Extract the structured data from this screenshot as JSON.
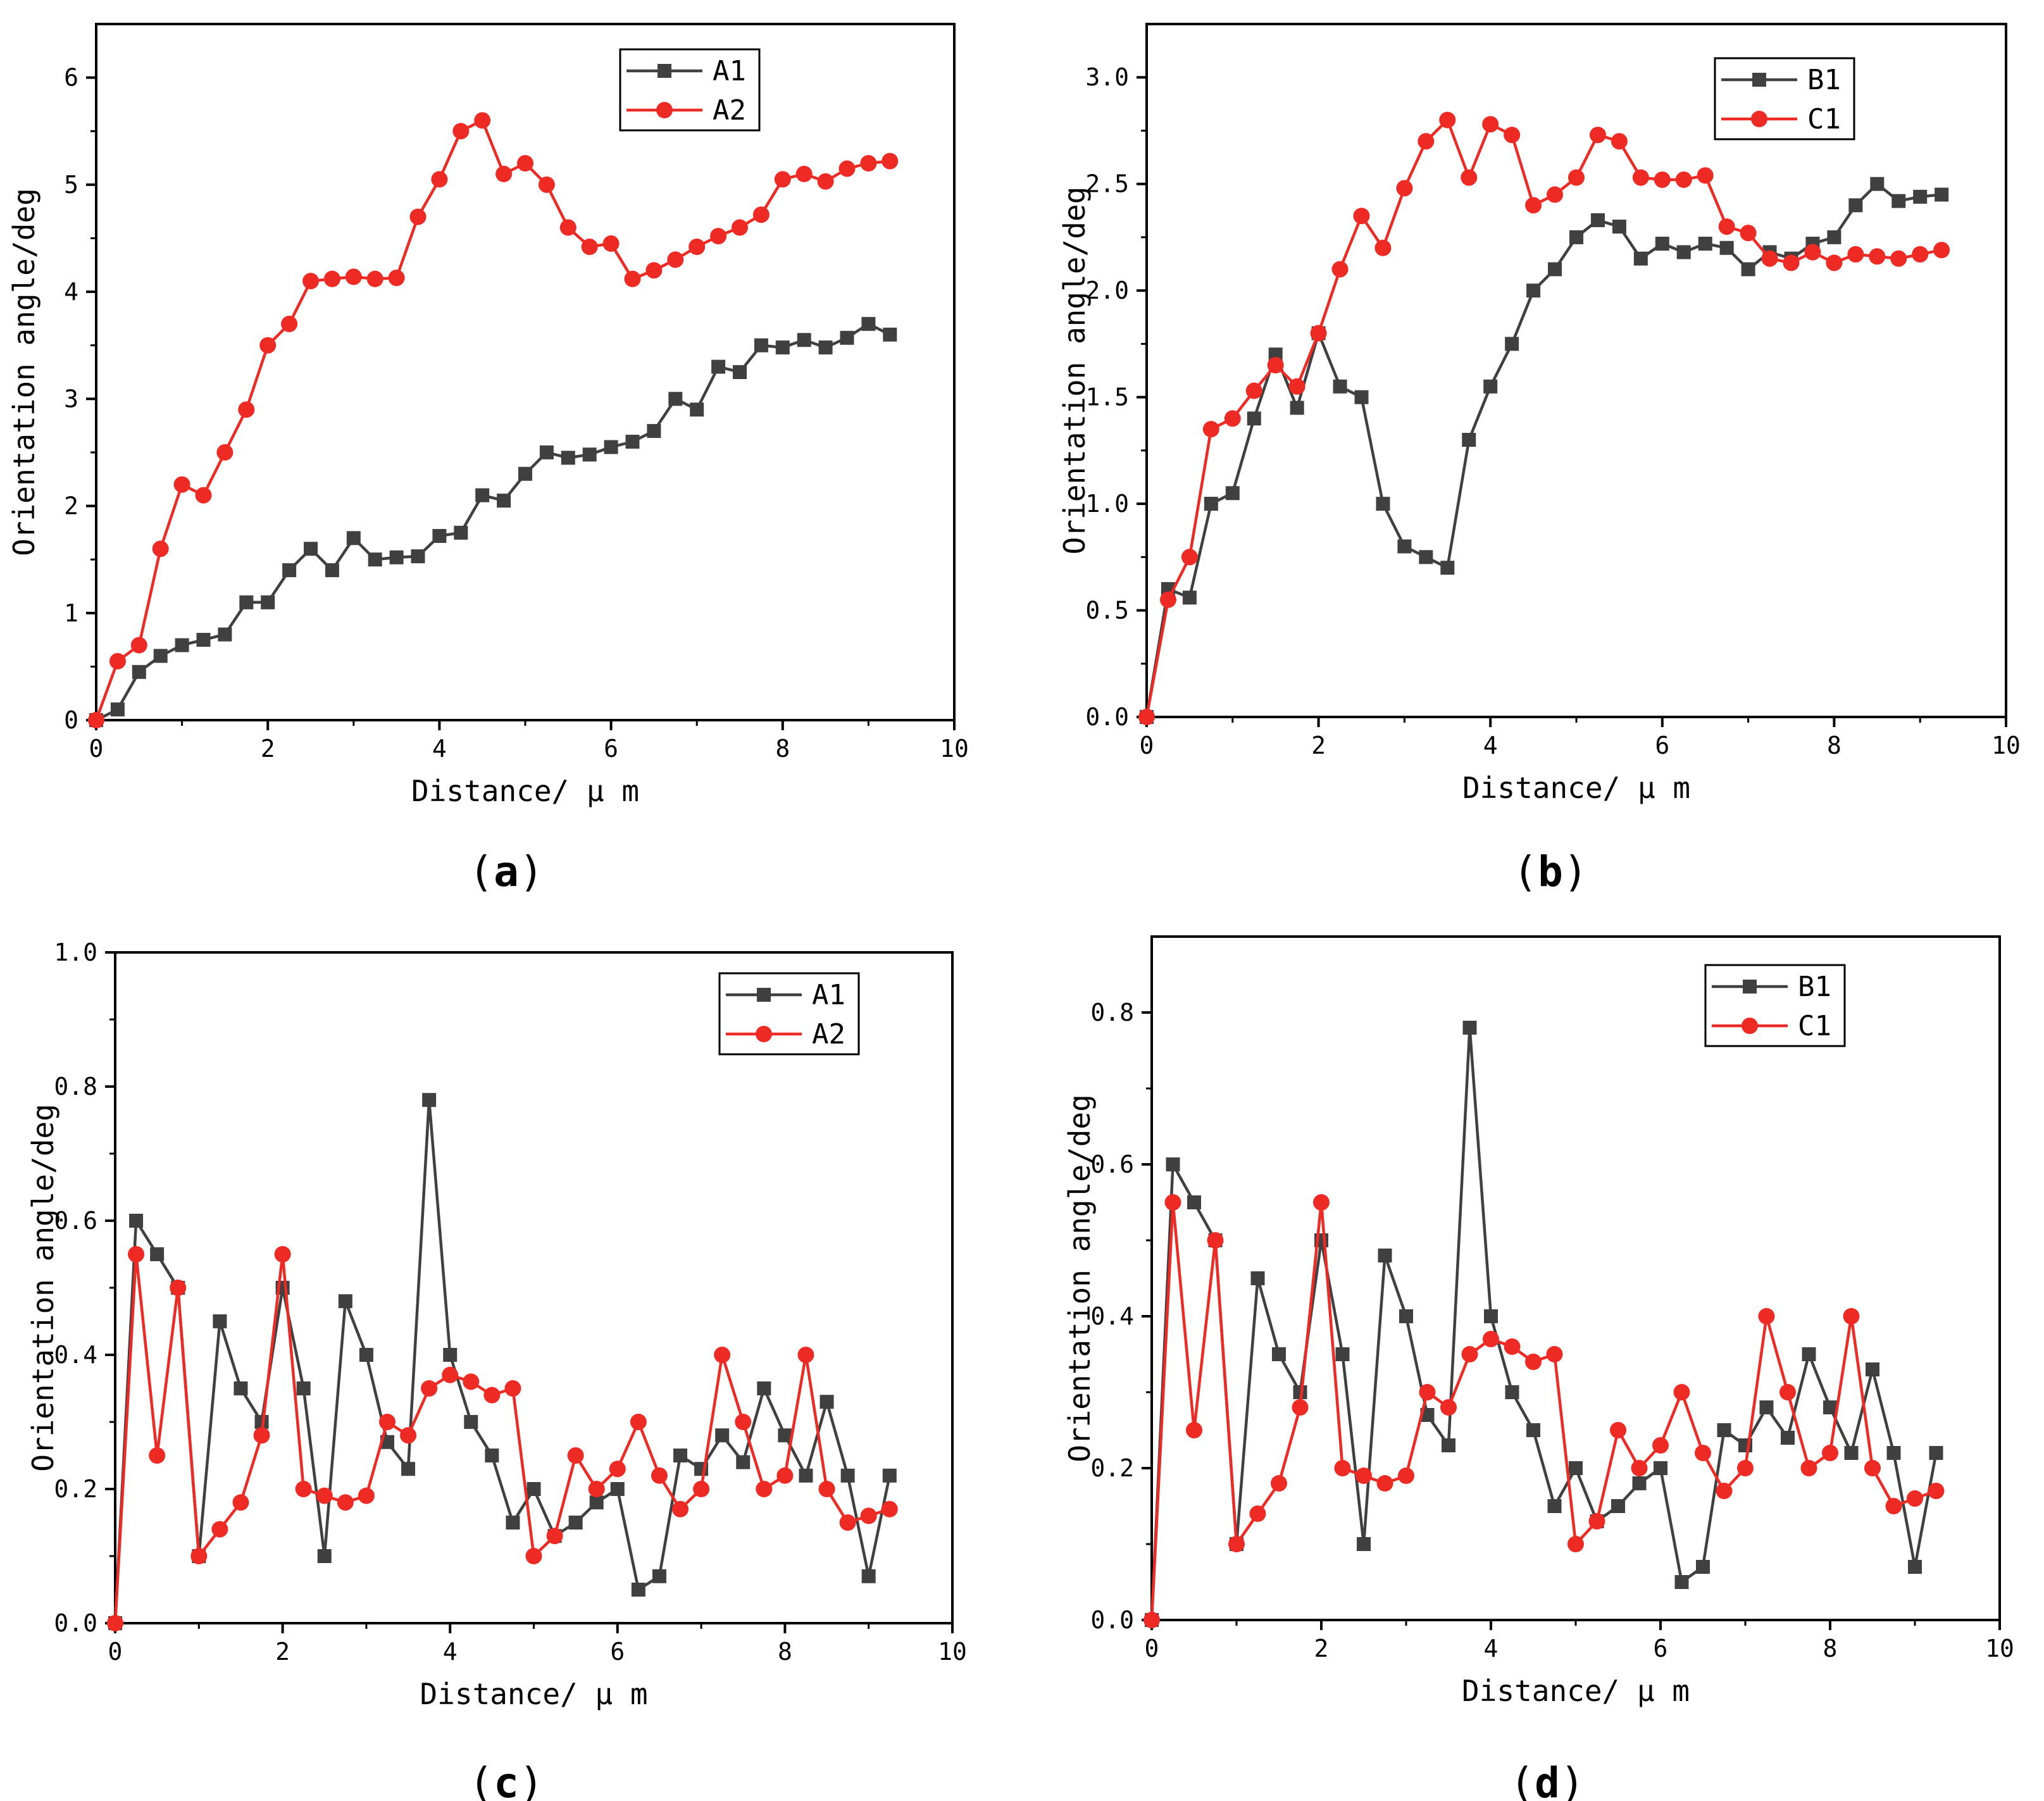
{
  "figure": {
    "colors": {
      "series1": "#404040",
      "series2": "#ee2a24",
      "axis": "#000000"
    }
  },
  "chart_data": [
    {
      "type": "line",
      "caption_letter": "a",
      "title": "",
      "xlabel": "Distance/ μ m",
      "ylabel": "Orientation angle/deg",
      "xlim": [
        0,
        10
      ],
      "ylim": [
        0,
        6.5
      ],
      "xticks": [
        0,
        2,
        4,
        6,
        8,
        10
      ],
      "xtick_labels": [
        "0",
        "2",
        "4",
        "6",
        "8",
        "10"
      ],
      "yticks": [
        0,
        1,
        2,
        3,
        4,
        5,
        6
      ],
      "ytick_labels": [
        "0",
        "1",
        "2",
        "3",
        "4",
        "5",
        "6"
      ],
      "legend_position": "top-center",
      "series": [
        {
          "name": "A1",
          "marker": "square",
          "color": "#404040",
          "x": [
            0,
            0.25,
            0.5,
            0.75,
            1.0,
            1.25,
            1.5,
            1.75,
            2.0,
            2.25,
            2.5,
            2.75,
            3.0,
            3.25,
            3.5,
            3.75,
            4.0,
            4.25,
            4.5,
            4.75,
            5.0,
            5.25,
            5.5,
            5.75,
            6.0,
            6.25,
            6.5,
            6.75,
            7.0,
            7.25,
            7.5,
            7.75,
            8.0,
            8.25,
            8.5,
            8.75,
            9.0,
            9.25
          ],
          "y": [
            0,
            0.1,
            0.45,
            0.6,
            0.7,
            0.75,
            0.8,
            1.1,
            1.1,
            1.4,
            1.6,
            1.4,
            1.7,
            1.5,
            1.52,
            1.53,
            1.72,
            1.75,
            2.1,
            2.05,
            2.3,
            2.5,
            2.45,
            2.48,
            2.55,
            2.6,
            2.7,
            3.0,
            2.9,
            3.3,
            3.25,
            3.5,
            3.48,
            3.55,
            3.48,
            3.57,
            3.7,
            3.6
          ]
        },
        {
          "name": "A2",
          "marker": "circle",
          "color": "#ee2a24",
          "x": [
            0,
            0.25,
            0.5,
            0.75,
            1.0,
            1.25,
            1.5,
            1.75,
            2.0,
            2.25,
            2.5,
            2.75,
            3.0,
            3.25,
            3.5,
            3.75,
            4.0,
            4.25,
            4.5,
            4.75,
            5.0,
            5.25,
            5.5,
            5.75,
            6.0,
            6.25,
            6.5,
            6.75,
            7.0,
            7.25,
            7.5,
            7.75,
            8.0,
            8.25,
            8.5,
            8.75,
            9.0,
            9.25
          ],
          "y": [
            0,
            0.55,
            0.7,
            1.6,
            2.2,
            2.1,
            2.5,
            2.9,
            3.5,
            3.7,
            4.1,
            4.12,
            4.14,
            4.12,
            4.13,
            4.7,
            5.05,
            5.5,
            5.6,
            5.1,
            5.2,
            5.0,
            4.6,
            4.42,
            4.45,
            4.12,
            4.2,
            4.3,
            4.42,
            4.52,
            4.6,
            4.72,
            5.05,
            5.1,
            5.03,
            5.15,
            5.2,
            5.22
          ]
        }
      ]
    },
    {
      "type": "line",
      "caption_letter": "b",
      "title": "",
      "xlabel": "Distance/ μ m",
      "ylabel": "Orientation angle/deg",
      "xlim": [
        0,
        10
      ],
      "ylim": [
        0,
        3.25
      ],
      "xticks": [
        0,
        2,
        4,
        6,
        8,
        10
      ],
      "xtick_labels": [
        "0",
        "2",
        "4",
        "6",
        "8",
        "10"
      ],
      "yticks": [
        0,
        0.5,
        1.0,
        1.5,
        2.0,
        2.5,
        3.0
      ],
      "ytick_labels": [
        "0.0",
        "0.5",
        "1.0",
        "1.5",
        "2.0",
        "2.5",
        "3.0"
      ],
      "legend_position": "top-right",
      "series": [
        {
          "name": "B1",
          "marker": "square",
          "color": "#404040",
          "x": [
            0,
            0.25,
            0.5,
            0.75,
            1.0,
            1.25,
            1.5,
            1.75,
            2.0,
            2.25,
            2.5,
            2.75,
            3.0,
            3.25,
            3.5,
            3.75,
            4.0,
            4.25,
            4.5,
            4.75,
            5.0,
            5.25,
            5.5,
            5.75,
            6.0,
            6.25,
            6.5,
            6.75,
            7.0,
            7.25,
            7.5,
            7.75,
            8.0,
            8.25,
            8.5,
            8.75,
            9.0,
            9.25
          ],
          "y": [
            0,
            0.6,
            0.56,
            1.0,
            1.05,
            1.4,
            1.7,
            1.45,
            1.8,
            1.55,
            1.5,
            1.0,
            0.8,
            0.75,
            0.7,
            1.3,
            1.55,
            1.75,
            2.0,
            2.1,
            2.25,
            2.33,
            2.3,
            2.15,
            2.22,
            2.18,
            2.22,
            2.2,
            2.1,
            2.18,
            2.15,
            2.22,
            2.25,
            2.4,
            2.5,
            2.42,
            2.44,
            2.45
          ]
        },
        {
          "name": "C1",
          "marker": "circle",
          "color": "#ee2a24",
          "x": [
            0,
            0.25,
            0.5,
            0.75,
            1.0,
            1.25,
            1.5,
            1.75,
            2.0,
            2.25,
            2.5,
            2.75,
            3.0,
            3.25,
            3.5,
            3.75,
            4.0,
            4.25,
            4.5,
            4.75,
            5.0,
            5.25,
            5.5,
            5.75,
            6.0,
            6.25,
            6.5,
            6.75,
            7.0,
            7.25,
            7.5,
            7.75,
            8.0,
            8.25,
            8.5,
            8.75,
            9.0,
            9.25
          ],
          "y": [
            0,
            0.55,
            0.75,
            1.35,
            1.4,
            1.53,
            1.65,
            1.55,
            1.8,
            2.1,
            2.35,
            2.2,
            2.48,
            2.7,
            2.8,
            2.53,
            2.78,
            2.73,
            2.4,
            2.45,
            2.53,
            2.73,
            2.7,
            2.53,
            2.52,
            2.52,
            2.54,
            2.3,
            2.27,
            2.15,
            2.13,
            2.18,
            2.13,
            2.17,
            2.16,
            2.15,
            2.17,
            2.19
          ]
        }
      ]
    },
    {
      "type": "line",
      "caption_letter": "c",
      "title": "",
      "xlabel": "Distance/ μ m",
      "ylabel": "Orientation angle/deg",
      "xlim": [
        0,
        10
      ],
      "ylim": [
        0,
        1.0
      ],
      "xticks": [
        0,
        2,
        4,
        6,
        8,
        10
      ],
      "xtick_labels": [
        "0",
        "2",
        "4",
        "6",
        "8",
        "10"
      ],
      "yticks": [
        0,
        0.2,
        0.4,
        0.6,
        0.8,
        1.0
      ],
      "ytick_labels": [
        "0.0",
        "0.2",
        "0.4",
        "0.6",
        "0.8",
        "1.0"
      ],
      "legend_position": "top-right",
      "series": [
        {
          "name": "A1",
          "marker": "square",
          "color": "#404040",
          "x": [
            0,
            0.25,
            0.5,
            0.75,
            1.0,
            1.25,
            1.5,
            1.75,
            2.0,
            2.25,
            2.5,
            2.75,
            3.0,
            3.25,
            3.5,
            3.75,
            4.0,
            4.25,
            4.5,
            4.75,
            5.0,
            5.25,
            5.5,
            5.75,
            6.0,
            6.25,
            6.5,
            6.75,
            7.0,
            7.25,
            7.5,
            7.75,
            8.0,
            8.25,
            8.5,
            8.75,
            9.0,
            9.25
          ],
          "y": [
            0,
            0.6,
            0.55,
            0.5,
            0.1,
            0.45,
            0.35,
            0.3,
            0.5,
            0.35,
            0.1,
            0.48,
            0.4,
            0.27,
            0.23,
            0.78,
            0.4,
            0.3,
            0.25,
            0.15,
            0.2,
            0.13,
            0.15,
            0.18,
            0.2,
            0.05,
            0.07,
            0.25,
            0.23,
            0.28,
            0.24,
            0.35,
            0.28,
            0.22,
            0.33,
            0.22,
            0.07,
            0.22
          ]
        },
        {
          "name": "A2",
          "marker": "circle",
          "color": "#ee2a24",
          "x": [
            0,
            0.25,
            0.5,
            0.75,
            1.0,
            1.25,
            1.5,
            1.75,
            2.0,
            2.25,
            2.5,
            2.75,
            3.0,
            3.25,
            3.5,
            3.75,
            4.0,
            4.25,
            4.5,
            4.75,
            5.0,
            5.25,
            5.5,
            5.75,
            6.0,
            6.25,
            6.5,
            6.75,
            7.0,
            7.25,
            7.5,
            7.75,
            8.0,
            8.25,
            8.5,
            8.75,
            9.0,
            9.25
          ],
          "y": [
            0,
            0.55,
            0.25,
            0.5,
            0.1,
            0.14,
            0.18,
            0.28,
            0.55,
            0.2,
            0.19,
            0.18,
            0.19,
            0.3,
            0.28,
            0.35,
            0.37,
            0.36,
            0.34,
            0.35,
            0.1,
            0.13,
            0.25,
            0.2,
            0.23,
            0.3,
            0.22,
            0.17,
            0.2,
            0.4,
            0.3,
            0.2,
            0.22,
            0.4,
            0.2,
            0.15,
            0.16,
            0.17
          ]
        }
      ]
    },
    {
      "type": "line",
      "caption_letter": "d",
      "title": "",
      "xlabel": "Distance/ μ m",
      "ylabel": "Orientation angle/deg",
      "xlim": [
        0,
        10
      ],
      "ylim": [
        0,
        0.9
      ],
      "xticks": [
        0,
        2,
        4,
        6,
        8,
        10
      ],
      "xtick_labels": [
        "0",
        "2",
        "4",
        "6",
        "8",
        "10"
      ],
      "yticks": [
        0,
        0.2,
        0.4,
        0.6,
        0.8
      ],
      "ytick_labels": [
        "0.0",
        "0.2",
        "0.4",
        "0.6",
        "0.8"
      ],
      "legend_position": "top-right",
      "series": [
        {
          "name": "B1",
          "marker": "square",
          "color": "#404040",
          "x": [
            0,
            0.25,
            0.5,
            0.75,
            1.0,
            1.25,
            1.5,
            1.75,
            2.0,
            2.25,
            2.5,
            2.75,
            3.0,
            3.25,
            3.5,
            3.75,
            4.0,
            4.25,
            4.5,
            4.75,
            5.0,
            5.25,
            5.5,
            5.75,
            6.0,
            6.25,
            6.5,
            6.75,
            7.0,
            7.25,
            7.5,
            7.75,
            8.0,
            8.25,
            8.5,
            8.75,
            9.0,
            9.25
          ],
          "y": [
            0,
            0.6,
            0.55,
            0.5,
            0.1,
            0.45,
            0.35,
            0.3,
            0.5,
            0.35,
            0.1,
            0.48,
            0.4,
            0.27,
            0.23,
            0.78,
            0.4,
            0.3,
            0.25,
            0.15,
            0.2,
            0.13,
            0.15,
            0.18,
            0.2,
            0.05,
            0.07,
            0.25,
            0.23,
            0.28,
            0.24,
            0.35,
            0.28,
            0.22,
            0.33,
            0.22,
            0.07,
            0.22
          ]
        },
        {
          "name": "C1",
          "marker": "circle",
          "color": "#ee2a24",
          "x": [
            0,
            0.25,
            0.5,
            0.75,
            1.0,
            1.25,
            1.5,
            1.75,
            2.0,
            2.25,
            2.5,
            2.75,
            3.0,
            3.25,
            3.5,
            3.75,
            4.0,
            4.25,
            4.5,
            4.75,
            5.0,
            5.25,
            5.5,
            5.75,
            6.0,
            6.25,
            6.5,
            6.75,
            7.0,
            7.25,
            7.5,
            7.75,
            8.0,
            8.25,
            8.5,
            8.75,
            9.0,
            9.25
          ],
          "y": [
            0,
            0.55,
            0.25,
            0.5,
            0.1,
            0.14,
            0.18,
            0.28,
            0.55,
            0.2,
            0.19,
            0.18,
            0.19,
            0.3,
            0.28,
            0.35,
            0.37,
            0.36,
            0.34,
            0.35,
            0.1,
            0.13,
            0.25,
            0.2,
            0.23,
            0.3,
            0.22,
            0.17,
            0.2,
            0.4,
            0.3,
            0.2,
            0.22,
            0.4,
            0.2,
            0.15,
            0.16,
            0.17
          ]
        }
      ]
    }
  ]
}
